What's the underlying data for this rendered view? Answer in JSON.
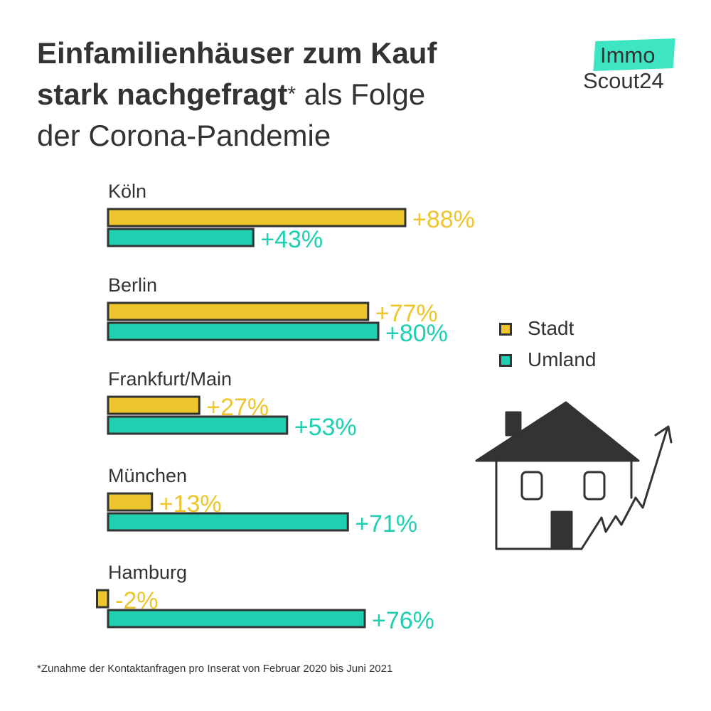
{
  "title": {
    "bold": "Einfamilienhäuser zum Kauf stark nachgefragt",
    "asterisk": "*",
    "rest_line2": " als Folge",
    "rest_line3": "der Corona-Pandemie"
  },
  "logo": {
    "top": "Immo",
    "bottom": "Scout24"
  },
  "legend": [
    {
      "label": "Stadt",
      "color": "#eec52d"
    },
    {
      "label": "Umland",
      "color": "#1ecfb2"
    }
  ],
  "footnote": "*Zunahme der Kontaktanfragen pro Inserat von Februar 2020 bis Juni 2021",
  "chart_data": {
    "type": "bar",
    "orientation": "horizontal",
    "categories": [
      "Köln",
      "Berlin",
      "Frankfurt/Main",
      "München",
      "Hamburg"
    ],
    "series": [
      {
        "name": "Stadt",
        "values": [
          88,
          77,
          27,
          13,
          -2
        ],
        "labels": [
          "+88%",
          "+77%",
          "+27%",
          "+13%",
          "-2%"
        ],
        "color": "#eec52d"
      },
      {
        "name": "Umland",
        "values": [
          43,
          80,
          53,
          71,
          76
        ],
        "labels": [
          "+43%",
          "+80%",
          "+53%",
          "+71%",
          "+76%"
        ],
        "color": "#1ecfb2"
      }
    ],
    "unit": "%",
    "legend_position": "right",
    "grid": false
  }
}
